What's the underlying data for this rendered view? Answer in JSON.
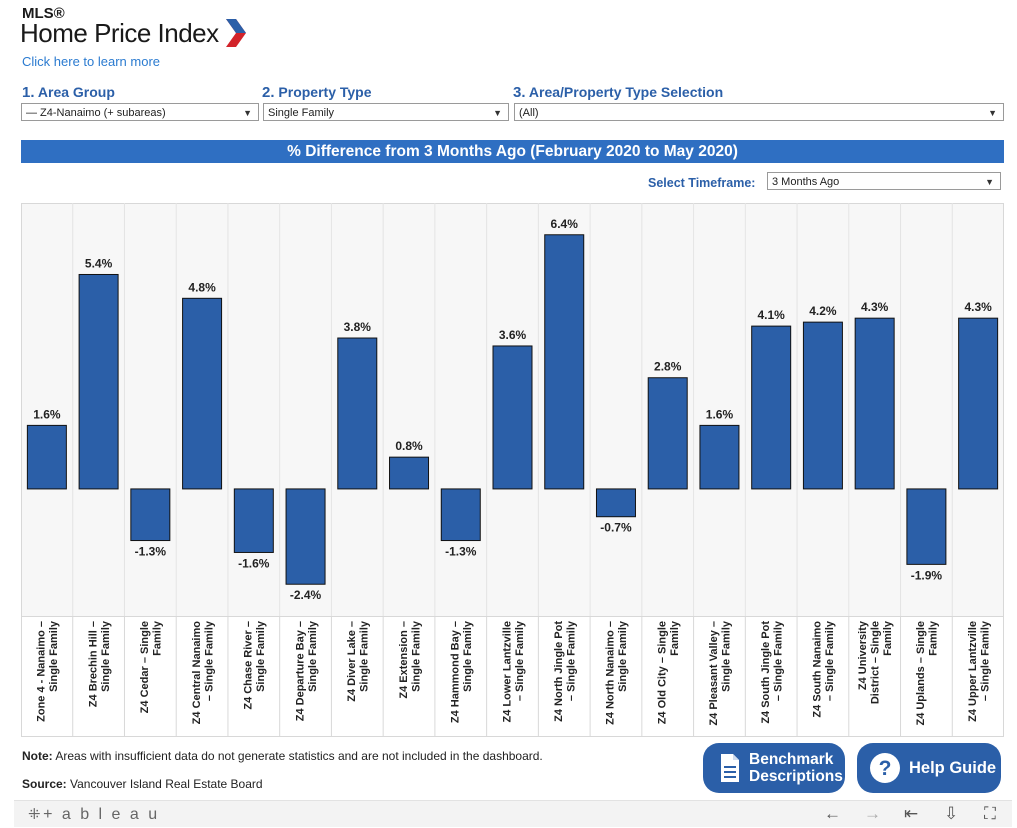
{
  "header": {
    "mls": "MLS®",
    "title": "Home Price Index",
    "learn_more": "Click here to learn more"
  },
  "filters": {
    "area_group": {
      "num": "1.",
      "label": "Area Group",
      "value": "— Z4-Nanaimo (+ subareas)"
    },
    "property_type": {
      "num": "2.",
      "label": "Property Type",
      "value": "Single Family"
    },
    "selection": {
      "num": "3.",
      "label": "Area/Property Type Selection",
      "value": "(All)"
    }
  },
  "banner": "% Difference from 3 Months Ago (February 2020 to May 2020)",
  "timeframe": {
    "label": "Select Timeframe:",
    "value": "3 Months Ago"
  },
  "chart_data": {
    "type": "bar",
    "title": "% Difference from 3 Months Ago (February 2020 to May 2020)",
    "categories": [
      "Zone 4 - Nanaimo – Single Family",
      "Z4 Brechin Hill – Single Family",
      "Z4 Cedar – Single Family",
      "Z4 Central Nanaimo – Single Family",
      "Z4 Chase River – Single Family",
      "Z4 Departure Bay – Single Family",
      "Z4 Diver Lake – Single Family",
      "Z4 Extension – Single Family",
      "Z4 Hammond Bay – Single Family",
      "Z4 Lower Lantzville – Single Family",
      "Z4 North Jingle Pot – Single Family",
      "Z4 North Nanaimo – Single Family",
      "Z4 Old City – Single Family",
      "Z4 Pleasant Valley – Single Family",
      "Z4 South Jingle Pot – Single Family",
      "Z4 South Nanaimo – Single Family",
      "Z4 University District – Single Family",
      "Z4 Uplands – Single Family",
      "Z4 Upper Lantzville – Single Family"
    ],
    "category_lines": [
      [
        "Zone 4 - Nanaimo –",
        "Single Family"
      ],
      [
        "Z4 Brechin Hill –",
        "Single Family"
      ],
      [
        "Z4 Cedar – Single",
        "Family"
      ],
      [
        "Z4 Central Nanaimo",
        "– Single Family"
      ],
      [
        "Z4 Chase River –",
        "Single Family"
      ],
      [
        "Z4 Departure Bay –",
        "Single Family"
      ],
      [
        "Z4 Diver Lake –",
        "Single Family"
      ],
      [
        "Z4 Extension –",
        "Single Family"
      ],
      [
        "Z4 Hammond Bay –",
        "Single Family"
      ],
      [
        "Z4 Lower Lantzville",
        "– Single Family"
      ],
      [
        "Z4 North Jingle Pot",
        "– Single Family"
      ],
      [
        "Z4 North Nanaimo –",
        "Single Family"
      ],
      [
        "Z4 Old City – Single",
        "Family"
      ],
      [
        "Z4 Pleasant Valley –",
        "Single Family"
      ],
      [
        "Z4 South Jingle Pot",
        "– Single Family"
      ],
      [
        "Z4 South Nanaimo",
        "– Single Family"
      ],
      [
        "Z4 University",
        "District – Single",
        "Family"
      ],
      [
        "Z4 Uplands – Single",
        "Family"
      ],
      [
        "Z4 Upper Lantzville",
        "– Single Family"
      ]
    ],
    "values": [
      1.6,
      5.4,
      -1.3,
      4.8,
      -1.6,
      -2.4,
      3.8,
      0.8,
      -1.3,
      3.6,
      6.4,
      -0.7,
      2.8,
      1.6,
      4.1,
      4.2,
      4.3,
      -1.9,
      4.3
    ],
    "value_labels": [
      "1.6%",
      "5.4%",
      "-1.3%",
      "4.8%",
      "-1.6%",
      "-2.4%",
      "3.8%",
      "0.8%",
      "-1.3%",
      "3.6%",
      "6.4%",
      "-0.7%",
      "2.8%",
      "1.6%",
      "4.1%",
      "4.2%",
      "4.3%",
      "-1.9%",
      "4.3%"
    ],
    "ylim": [
      -3.2,
      7.2
    ],
    "bar_color": "#2b5fa8",
    "grid": false
  },
  "footer": {
    "note_bold": "Note:",
    "note_text": " Areas with insufficient data do not generate statistics and are not included in the dashboard.",
    "source_bold": "Source:",
    "source_text": " Vancouver Island Real Estate Board",
    "benchmark_line1": "Benchmark",
    "benchmark_line2": "Descriptions",
    "help": "Help Guide"
  },
  "toolbar": {
    "logo": "+ a b l e a u",
    "icons": [
      "undo-icon",
      "redo-icon",
      "revert-icon",
      "download-icon",
      "fullscreen-icon"
    ]
  }
}
